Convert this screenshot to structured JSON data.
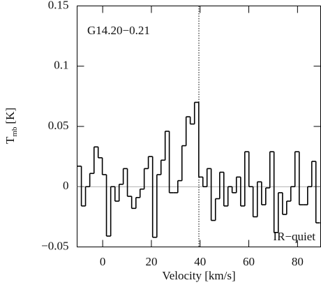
{
  "chart_data": {
    "type": "step",
    "annotations": {
      "source": "G14.20−0.21",
      "class": "IR−quiet"
    },
    "xlabel": "Velocity [km/s]",
    "ylabel": {
      "symbol": "T",
      "subscript": "mb",
      "unit": "[K]"
    },
    "x": [
      -9.6,
      -7.9,
      -6.2,
      -4.4,
      -2.7,
      -1.0,
      0.7,
      2.4,
      4.2,
      5.9,
      7.6,
      9.3,
      11.0,
      12.8,
      14.5,
      16.2,
      17.9,
      19.6,
      21.4,
      23.1,
      24.8,
      26.5,
      28.2,
      30.0,
      31.7,
      33.4,
      35.1,
      36.8,
      38.6,
      40.3,
      42.0,
      43.7,
      45.4,
      47.2,
      48.9,
      50.6,
      52.3,
      54.0,
      55.8,
      57.5,
      59.2,
      60.9,
      62.6,
      64.4,
      66.1,
      67.8,
      69.5,
      71.2,
      73.0,
      74.7,
      76.4,
      78.1,
      79.8,
      81.6,
      83.3,
      85.0,
      86.7,
      88.4
    ],
    "series": [
      {
        "name": "spectrum",
        "color": "#000000",
        "values": [
          0.017,
          -0.016,
          0.0,
          0.011,
          0.033,
          0.024,
          0.01,
          -0.041,
          0.0,
          -0.012,
          0.002,
          0.015,
          -0.008,
          -0.018,
          -0.009,
          -0.002,
          0.015,
          0.025,
          -0.042,
          0.01,
          0.022,
          0.046,
          -0.005,
          -0.005,
          0.005,
          0.034,
          0.058,
          0.052,
          0.07,
          0.008,
          0.0,
          0.015,
          -0.028,
          -0.01,
          0.012,
          -0.016,
          0.0,
          -0.005,
          0.008,
          -0.016,
          0.029,
          0.0,
          -0.025,
          0.004,
          -0.015,
          -0.001,
          0.029,
          -0.038,
          -0.005,
          -0.023,
          -0.012,
          0.0,
          0.029,
          -0.015,
          -0.015,
          0.0,
          0.021,
          -0.03
        ]
      }
    ],
    "vline": 39.5,
    "xlim": [
      -10.5,
      89.5
    ],
    "xticks": [
      0,
      20,
      40,
      60,
      80
    ],
    "ylim": [
      -0.05,
      0.15
    ],
    "yticks": [
      {
        "value": -0.05,
        "label": "−0.05"
      },
      0,
      0.05,
      0.1,
      0.15
    ]
  }
}
